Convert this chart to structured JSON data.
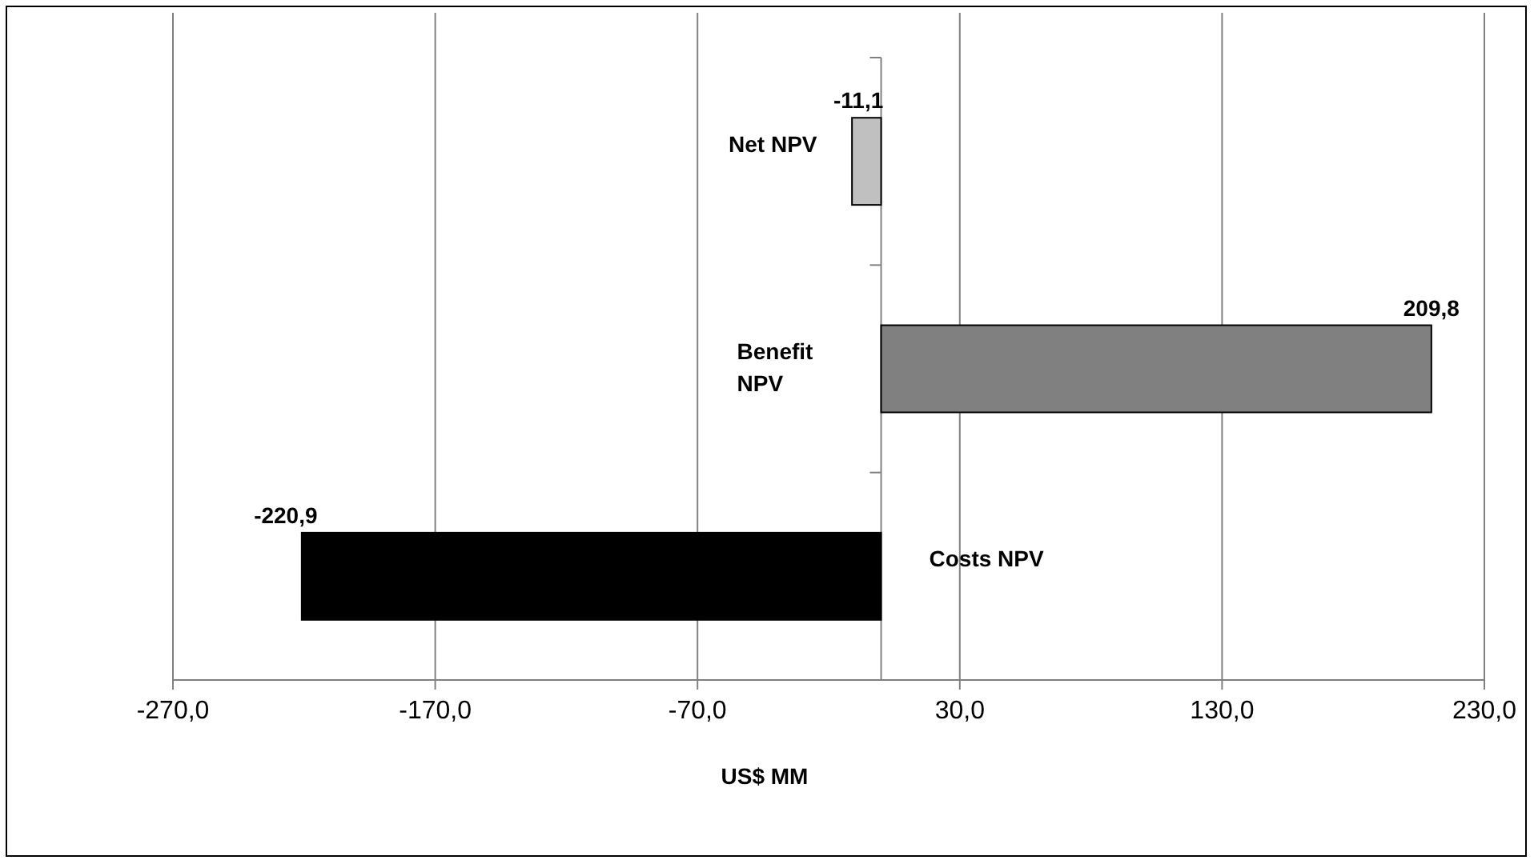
{
  "chart_data": {
    "type": "bar",
    "orientation": "horizontal",
    "xlabel": "US$ MM",
    "categories": [
      "Net NPV",
      "Benefit NPV",
      "Costs NPV"
    ],
    "values": [
      -11.1,
      209.8,
      -220.9
    ],
    "colors": [
      "#c0c0c0",
      "#808080",
      "#000000"
    ],
    "value_labels": [
      "-11,1",
      "209,8",
      "-220,9"
    ],
    "xlim": [
      -270,
      230
    ],
    "xticks": [
      {
        "value": -270,
        "label": "-270,0"
      },
      {
        "value": -170,
        "label": "-170,0"
      },
      {
        "value": -70,
        "label": "-70,0"
      },
      {
        "value": 30,
        "label": "30,0"
      },
      {
        "value": 130,
        "label": "130,0"
      },
      {
        "value": 230,
        "label": "230,0"
      }
    ],
    "grid": "x"
  }
}
